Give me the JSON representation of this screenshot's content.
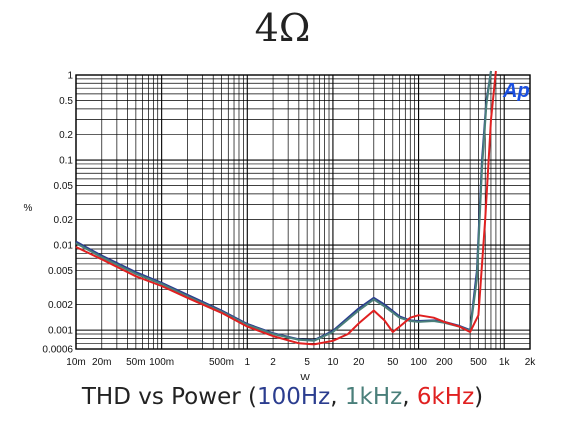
{
  "title": "4Ω",
  "caption": {
    "prefix": "THD vs Power (",
    "s1": "100Hz",
    "sep1": ", ",
    "s2": "1kHz",
    "sep2": ", ",
    "s3": "6kHz",
    "suffix": ")"
  },
  "logo_text": "Ap",
  "chart_data": {
    "type": "line",
    "title": "4Ω",
    "xlabel": "W",
    "ylabel": "%",
    "xscale": "log",
    "yscale": "log",
    "xlim": [
      0.01,
      2000
    ],
    "ylim": [
      0.0006,
      1
    ],
    "grid": true,
    "xticks": [
      {
        "v": 0.01,
        "label": "10m"
      },
      {
        "v": 0.02,
        "label": "20m"
      },
      {
        "v": 0.05,
        "label": "50m"
      },
      {
        "v": 0.1,
        "label": "100m"
      },
      {
        "v": 0.5,
        "label": "500m"
      },
      {
        "v": 1,
        "label": "1"
      },
      {
        "v": 2,
        "label": "2"
      },
      {
        "v": 5,
        "label": "5"
      },
      {
        "v": 10,
        "label": "10"
      },
      {
        "v": 20,
        "label": "20"
      },
      {
        "v": 50,
        "label": "50"
      },
      {
        "v": 100,
        "label": "100"
      },
      {
        "v": 200,
        "label": "200"
      },
      {
        "v": 500,
        "label": "500"
      },
      {
        "v": 1000,
        "label": "1k"
      },
      {
        "v": 2000,
        "label": "2k"
      }
    ],
    "yticks": [
      {
        "v": 1,
        "label": "1"
      },
      {
        "v": 0.5,
        "label": "0.5"
      },
      {
        "v": 0.2,
        "label": "0.2"
      },
      {
        "v": 0.1,
        "label": "0.1"
      },
      {
        "v": 0.05,
        "label": "0.05"
      },
      {
        "v": 0.02,
        "label": "0.02"
      },
      {
        "v": 0.01,
        "label": "0.01"
      },
      {
        "v": 0.005,
        "label": "0.005"
      },
      {
        "v": 0.002,
        "label": "0.002"
      },
      {
        "v": 0.001,
        "label": "0.001"
      },
      {
        "v": 0.0006,
        "label": "0.0006"
      }
    ],
    "series": [
      {
        "name": "100Hz",
        "color": "#2b3d8f",
        "x": [
          0.01,
          0.02,
          0.05,
          0.1,
          0.2,
          0.5,
          1,
          2,
          4,
          6,
          10,
          20,
          30,
          40,
          60,
          80,
          100,
          150,
          200,
          300,
          400,
          480,
          550,
          620,
          700
        ],
        "y": [
          0.011,
          0.0075,
          0.0048,
          0.0036,
          0.0026,
          0.0017,
          0.00118,
          0.00092,
          0.00078,
          0.00076,
          0.00098,
          0.0018,
          0.0024,
          0.002,
          0.00145,
          0.0013,
          0.00128,
          0.0013,
          0.00125,
          0.00112,
          0.001,
          0.005,
          0.1,
          0.5,
          1.2
        ]
      },
      {
        "name": "1kHz",
        "color": "#4a7f7a",
        "x": [
          0.01,
          0.02,
          0.05,
          0.1,
          0.2,
          0.5,
          1,
          2,
          4,
          6,
          10,
          20,
          30,
          40,
          60,
          80,
          100,
          150,
          200,
          300,
          400,
          480,
          550,
          620,
          700
        ],
        "y": [
          0.0105,
          0.0072,
          0.0046,
          0.0035,
          0.0025,
          0.00165,
          0.00115,
          0.0009,
          0.00077,
          0.00075,
          0.00095,
          0.0017,
          0.0023,
          0.0019,
          0.0014,
          0.00128,
          0.00125,
          0.00128,
          0.00122,
          0.0011,
          0.00098,
          0.004,
          0.08,
          0.45,
          1.2
        ]
      },
      {
        "name": "6kHz",
        "color": "#e02020",
        "x": [
          0.01,
          0.02,
          0.05,
          0.1,
          0.2,
          0.5,
          1,
          2,
          4,
          6,
          10,
          15,
          20,
          30,
          40,
          50,
          60,
          80,
          100,
          150,
          200,
          300,
          400,
          500,
          600,
          700,
          800
        ],
        "y": [
          0.0095,
          0.0068,
          0.0043,
          0.0033,
          0.0024,
          0.0016,
          0.0011,
          0.00085,
          0.0007,
          0.00068,
          0.00075,
          0.0009,
          0.0012,
          0.0017,
          0.0013,
          0.00095,
          0.0011,
          0.0014,
          0.0015,
          0.0014,
          0.00125,
          0.0011,
          0.00095,
          0.0015,
          0.02,
          0.3,
          1.2
        ]
      }
    ]
  }
}
